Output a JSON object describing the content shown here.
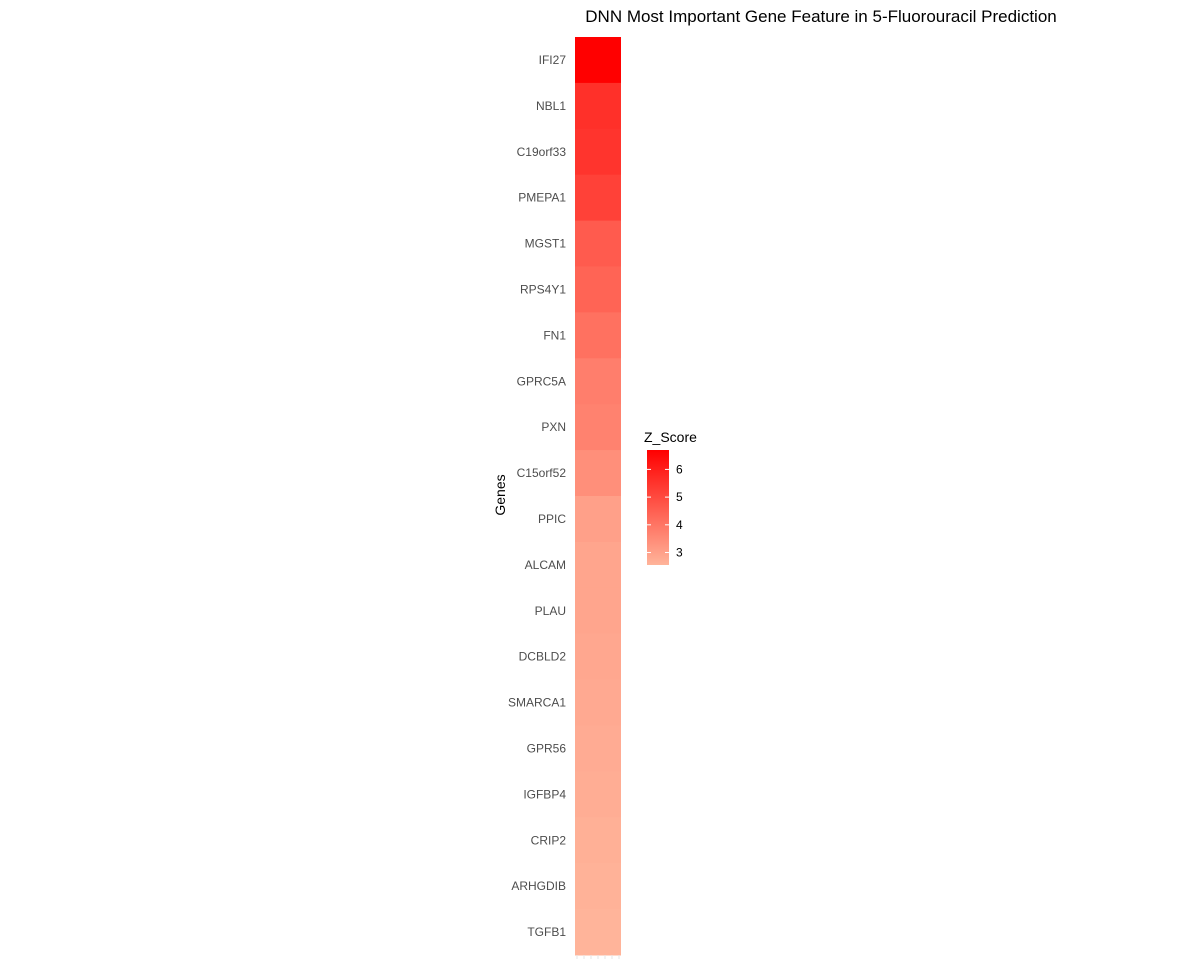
{
  "chart_data": {
    "type": "heatmap",
    "title": "DNN Most Important Gene Feature in 5-Fluorouracil Prediction",
    "ylabel": "Genes",
    "xlabel": "",
    "genes": [
      "IFI27",
      "NBL1",
      "C19orf33",
      "PMEPA1",
      "MGST1",
      "RPS4Y1",
      "FN1",
      "GPRC5A",
      "PXN",
      "C15orf52",
      "PPIC",
      "ALCAM",
      "PLAU",
      "DCBLD2",
      "SMARCA1",
      "GPR56",
      "IGFBP4",
      "CRIP2",
      "ARHGDIB",
      "TGFB1"
    ],
    "values": [
      6.7,
      5.6,
      5.5,
      5.2,
      4.6,
      4.4,
      4.1,
      3.8,
      3.7,
      3.4,
      3.0,
      2.9,
      2.9,
      2.85,
      2.8,
      2.75,
      2.7,
      2.65,
      2.6,
      2.55
    ],
    "legend": {
      "title": "Z_Score",
      "breaks": [
        "3",
        "4",
        "5",
        "6"
      ],
      "placement": "right",
      "range": [
        2.55,
        6.7
      ]
    },
    "colors": {
      "low": "#ffb49a",
      "high": "#ff0000"
    }
  }
}
